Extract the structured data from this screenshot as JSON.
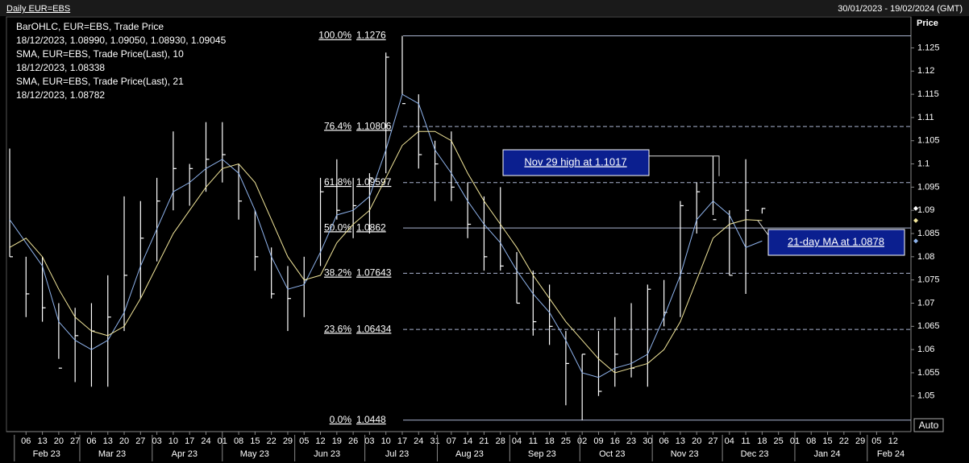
{
  "chart_data": {
    "type": "ohlc",
    "title": "Daily EUR=EBS",
    "date_range": "30/01/2023 - 19/02/2024 (GMT)",
    "y_axis_label": "Price",
    "scale_button": "Auto",
    "legend": [
      {
        "text": "BarOHLC, EUR=EBS, Trade Price",
        "color": "#ffffff"
      },
      {
        "text": "18/12/2023, 1.08990, 1.09050, 1.08930, 1.09045",
        "color": "#ffffff"
      },
      {
        "text": "SMA, EUR=EBS, Trade Price(Last),  10",
        "color": "#8fb4ee"
      },
      {
        "text": "18/12/2023, 1.08338",
        "color": "#8fb4ee"
      },
      {
        "text": "SMA, EUR=EBS, Trade Price(Last),  21",
        "color": "#f2e69a"
      },
      {
        "text": "18/12/2023, 1.08782",
        "color": "#f2e69a"
      }
    ],
    "xlim": [
      "2023-01-30",
      "2024-02-19"
    ],
    "x": [
      "2023-01-30",
      "2023-02-06",
      "2023-02-13",
      "2023-02-20",
      "2023-02-27",
      "2023-03-06",
      "2023-03-13",
      "2023-03-20",
      "2023-03-27",
      "2023-04-03",
      "2023-04-10",
      "2023-04-17",
      "2023-04-24",
      "2023-05-01",
      "2023-05-08",
      "2023-05-15",
      "2023-05-22",
      "2023-05-29",
      "2023-06-05",
      "2023-06-12",
      "2023-06-19",
      "2023-06-26",
      "2023-07-03",
      "2023-07-10",
      "2023-07-17",
      "2023-07-24",
      "2023-07-31",
      "2023-08-07",
      "2023-08-14",
      "2023-08-21",
      "2023-08-28",
      "2023-09-04",
      "2023-09-11",
      "2023-09-18",
      "2023-09-25",
      "2023-10-02",
      "2023-10-09",
      "2023-10-16",
      "2023-10-23",
      "2023-10-30",
      "2023-11-06",
      "2023-11-13",
      "2023-11-20",
      "2023-11-27",
      "2023-12-04",
      "2023-12-11",
      "2023-12-18"
    ],
    "high": [
      1.1033,
      1.08,
      1.08,
      1.07,
      1.069,
      1.07,
      1.076,
      1.093,
      1.092,
      1.097,
      1.107,
      1.1,
      1.109,
      1.109,
      1.1,
      1.09,
      1.082,
      1.078,
      1.08,
      1.097,
      1.101,
      1.097,
      1.098,
      1.124,
      1.1276,
      1.115,
      1.105,
      1.107,
      1.096,
      1.093,
      1.095,
      1.081,
      1.077,
      1.074,
      1.064,
      1.059,
      1.064,
      1.067,
      1.07,
      1.074,
      1.075,
      1.092,
      1.096,
      1.1017,
      1.09,
      1.101,
      1.0905
    ],
    "low": [
      1.08,
      1.067,
      1.066,
      1.058,
      1.053,
      1.052,
      1.052,
      1.064,
      1.071,
      1.079,
      1.09,
      1.091,
      1.094,
      1.096,
      1.088,
      1.077,
      1.071,
      1.064,
      1.067,
      1.078,
      1.088,
      1.084,
      1.085,
      1.098,
      1.115,
      1.099,
      1.092,
      1.092,
      1.084,
      1.077,
      1.077,
      1.07,
      1.063,
      1.061,
      1.048,
      1.0448,
      1.05,
      1.052,
      1.054,
      1.052,
      1.065,
      1.067,
      1.085,
      1.089,
      1.076,
      1.072,
      1.0893
    ],
    "close": [
      1.08,
      1.072,
      1.069,
      1.056,
      1.063,
      1.064,
      1.067,
      1.076,
      1.084,
      1.092,
      1.099,
      1.099,
      1.101,
      1.102,
      1.092,
      1.08,
      1.072,
      1.071,
      1.075,
      1.094,
      1.09,
      1.091,
      1.097,
      1.123,
      1.113,
      1.102,
      1.1,
      1.095,
      1.087,
      1.08,
      1.078,
      1.07,
      1.066,
      1.065,
      1.057,
      1.059,
      1.051,
      1.059,
      1.056,
      1.073,
      1.068,
      1.091,
      1.094,
      1.088,
      1.076,
      1.09,
      1.0904
    ],
    "bar_color": "#ffffff",
    "series": [
      {
        "name": "SMA 10",
        "color": "#8fb4ee",
        "values": [
          1.088,
          1.083,
          1.078,
          1.066,
          1.062,
          1.06,
          1.062,
          1.068,
          1.078,
          1.086,
          1.094,
          1.096,
          1.099,
          1.101,
          1.098,
          1.09,
          1.08,
          1.073,
          1.074,
          1.081,
          1.089,
          1.09,
          1.093,
          1.103,
          1.115,
          1.113,
          1.103,
          1.098,
          1.092,
          1.087,
          1.083,
          1.077,
          1.072,
          1.068,
          1.062,
          1.055,
          1.054,
          1.056,
          1.057,
          1.059,
          1.067,
          1.076,
          1.088,
          1.092,
          1.089,
          1.082,
          1.0834
        ]
      },
      {
        "name": "SMA 21",
        "color": "#f2e69a",
        "values": [
          1.082,
          1.084,
          1.08,
          1.073,
          1.067,
          1.064,
          1.063,
          1.065,
          1.071,
          1.078,
          1.085,
          1.09,
          1.095,
          1.099,
          1.1,
          1.096,
          1.088,
          1.08,
          1.075,
          1.076,
          1.083,
          1.087,
          1.09,
          1.097,
          1.104,
          1.107,
          1.107,
          1.105,
          1.098,
          1.092,
          1.087,
          1.082,
          1.076,
          1.071,
          1.066,
          1.062,
          1.058,
          1.055,
          1.056,
          1.057,
          1.06,
          1.066,
          1.075,
          1.084,
          1.087,
          1.088,
          1.0878
        ]
      }
    ],
    "ylim": [
      1.0425,
      1.1315
    ],
    "yticks": [
      1.05,
      1.055,
      1.06,
      1.065,
      1.07,
      1.075,
      1.08,
      1.085,
      1.09,
      1.095,
      1.1,
      1.105,
      1.11,
      1.115,
      1.12,
      1.125
    ],
    "fib_levels": [
      {
        "pct": "100.0%",
        "value": 1.1276,
        "style": "solid"
      },
      {
        "pct": "76.4%",
        "value": 1.10806,
        "style": "dashed"
      },
      {
        "pct": "61.8%",
        "value": 1.09597,
        "style": "dashed"
      },
      {
        "pct": "50.0%",
        "value": 1.0862,
        "style": "solid"
      },
      {
        "pct": "38.2%",
        "value": 1.07643,
        "style": "dashed"
      },
      {
        "pct": "23.6%",
        "value": 1.06434,
        "style": "dashed"
      },
      {
        "pct": "0.0%",
        "value": 1.0448,
        "style": "solid"
      }
    ],
    "annotations": [
      {
        "text": "Nov 29 high at 1.1017"
      },
      {
        "text": "21-day MA at 1.0878"
      }
    ],
    "xticks": [
      {
        "value": "2023-02-06",
        "label": "06"
      },
      {
        "value": "2023-02-13",
        "label": "13"
      },
      {
        "value": "2023-02-20",
        "label": "20"
      },
      {
        "value": "2023-02-27",
        "label": "27"
      },
      {
        "value": "2023-03-06",
        "label": "06"
      },
      {
        "value": "2023-03-13",
        "label": "13"
      },
      {
        "value": "2023-03-20",
        "label": "20"
      },
      {
        "value": "2023-03-27",
        "label": "27"
      },
      {
        "value": "2023-04-03",
        "label": "03"
      },
      {
        "value": "2023-04-10",
        "label": "10"
      },
      {
        "value": "2023-04-17",
        "label": "17"
      },
      {
        "value": "2023-04-24",
        "label": "24"
      },
      {
        "value": "2023-05-01",
        "label": "01"
      },
      {
        "value": "2023-05-08",
        "label": "08"
      },
      {
        "value": "2023-05-15",
        "label": "15"
      },
      {
        "value": "2023-05-22",
        "label": "22"
      },
      {
        "value": "2023-05-29",
        "label": "29"
      },
      {
        "value": "2023-06-05",
        "label": "05"
      },
      {
        "value": "2023-06-12",
        "label": "12"
      },
      {
        "value": "2023-06-19",
        "label": "19"
      },
      {
        "value": "2023-06-26",
        "label": "26"
      },
      {
        "value": "2023-07-03",
        "label": "03"
      },
      {
        "value": "2023-07-10",
        "label": "10"
      },
      {
        "value": "2023-07-17",
        "label": "17"
      },
      {
        "value": "2023-07-24",
        "label": "24"
      },
      {
        "value": "2023-07-31",
        "label": "31"
      },
      {
        "value": "2023-08-07",
        "label": "07"
      },
      {
        "value": "2023-08-14",
        "label": "14"
      },
      {
        "value": "2023-08-21",
        "label": "21"
      },
      {
        "value": "2023-08-28",
        "label": "28"
      },
      {
        "value": "2023-09-04",
        "label": "04"
      },
      {
        "value": "2023-09-11",
        "label": "11"
      },
      {
        "value": "2023-09-18",
        "label": "18"
      },
      {
        "value": "2023-09-25",
        "label": "25"
      },
      {
        "value": "2023-10-02",
        "label": "02"
      },
      {
        "value": "2023-10-09",
        "label": "09"
      },
      {
        "value": "2023-10-16",
        "label": "16"
      },
      {
        "value": "2023-10-23",
        "label": "23"
      },
      {
        "value": "2023-10-30",
        "label": "30"
      },
      {
        "value": "2023-11-06",
        "label": "06"
      },
      {
        "value": "2023-11-13",
        "label": "13"
      },
      {
        "value": "2023-11-20",
        "label": "20"
      },
      {
        "value": "2023-11-27",
        "label": "27"
      },
      {
        "value": "2023-12-04",
        "label": "04"
      },
      {
        "value": "2023-12-11",
        "label": "11"
      },
      {
        "value": "2023-12-18",
        "label": "18"
      },
      {
        "value": "2023-12-25",
        "label": "25"
      },
      {
        "value": "2024-01-01",
        "label": "01"
      },
      {
        "value": "2024-01-08",
        "label": "08"
      },
      {
        "value": "2024-01-15",
        "label": "15"
      },
      {
        "value": "2024-01-22",
        "label": "22"
      },
      {
        "value": "2024-01-29",
        "label": "29"
      },
      {
        "value": "2024-02-05",
        "label": "05"
      },
      {
        "value": "2024-02-12",
        "label": "12"
      }
    ],
    "month_ticks": [
      {
        "value": "2023-02",
        "label": "Feb 23"
      },
      {
        "value": "2023-03",
        "label": "Mar 23"
      },
      {
        "value": "2023-04",
        "label": "Apr 23"
      },
      {
        "value": "2023-05",
        "label": "May 23"
      },
      {
        "value": "2023-06",
        "label": "Jun 23"
      },
      {
        "value": "2023-07",
        "label": "Jul 23"
      },
      {
        "value": "2023-08",
        "label": "Aug 23"
      },
      {
        "value": "2023-09",
        "label": "Sep 23"
      },
      {
        "value": "2023-10",
        "label": "Oct 23"
      },
      {
        "value": "2023-11",
        "label": "Nov 23"
      },
      {
        "value": "2023-12",
        "label": "Dec 23"
      },
      {
        "value": "2024-01",
        "label": "Jan 24"
      },
      {
        "value": "2024-02",
        "label": "Feb 24"
      }
    ]
  }
}
